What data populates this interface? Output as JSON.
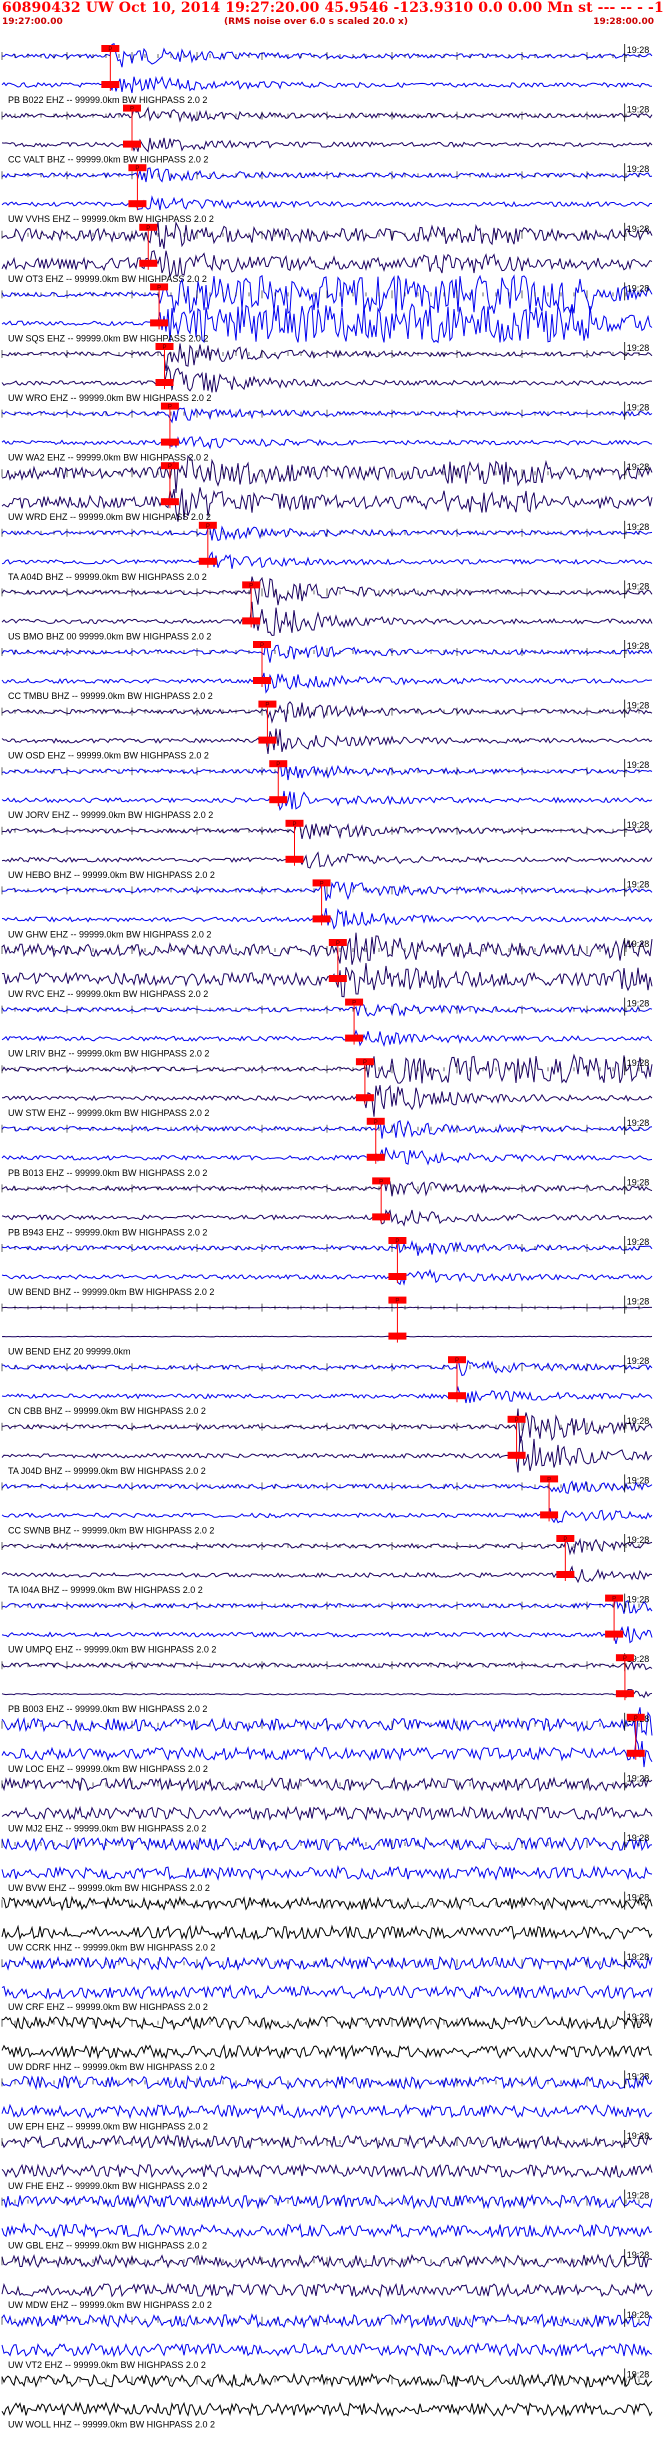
{
  "header": {
    "title": "60890432 UW Oct 10, 2014 19:27:20.00   45.9546 -123.9310  0.0 0.00 Mn st --- -- -   -1",
    "start_time": "19:27:00.00",
    "note": "(RMS noise over 6.0 s scaled 20.0 x)",
    "end_time": "19:28:00.00"
  },
  "colors": {
    "header_text": "#ff0000",
    "trace_blue": "#0000ee",
    "trace_navy": "#1a0060",
    "trace_black": "#000000",
    "pick_box": "#ff0000",
    "pick_line": "#ff0000"
  },
  "chart_data": {
    "type": "seismogram",
    "title": "60890432 UW Oct 10, 2014 19:27:20.00   45.9546 -123.9310  0.0 0.00 Mn st --- -- -   -1",
    "x_axis": {
      "start": "19:27:00.00",
      "end": "19:28:00.00",
      "tick_label": "19:28",
      "unit": "s"
    },
    "pick_box_label": "P",
    "traces": [
      {
        "label": "PB B022 EHZ -- 99999.0km BW  HIGHPASS  2.0  2",
        "pick_s": 10.0,
        "amp": 0.55,
        "style": "burst"
      },
      {
        "label": "CC VALT BHZ -- 99999.0km BW  HIGHPASS  2.0  2",
        "pick_s": 12.0,
        "amp": 0.35,
        "style": "quiet"
      },
      {
        "label": "UW VVHS EHZ -- 99999.0km BW  HIGHPASS  2.0  2",
        "pick_s": 12.5,
        "amp": 0.3,
        "style": "quiet"
      },
      {
        "label": "UW OT3 EHZ -- 99999.0km BW  HIGHPASS  2.0  2",
        "pick_s": 13.5,
        "amp": 0.45,
        "style": "noisy"
      },
      {
        "label": "UW SQS EHZ -- 99999.0km BW  HIGHPASS  2.0  2",
        "pick_s": 14.5,
        "amp": 1.0,
        "style": "saturated"
      },
      {
        "label": "UW WRO EHZ -- 99999.0km BW  HIGHPASS  2.0  2",
        "pick_s": 15.0,
        "amp": 0.7,
        "style": "burst"
      },
      {
        "label": "UW WA2 EHZ -- 99999.0km BW  HIGHPASS  2.0  2",
        "pick_s": 15.5,
        "amp": 0.3,
        "style": "quiet"
      },
      {
        "label": "UW WRD EHZ -- 99999.0km BW  HIGHPASS  2.0  2",
        "pick_s": 15.5,
        "amp": 0.7,
        "style": "noisy"
      },
      {
        "label": "TA A04D BHZ -- 99999.0km BW  HIGHPASS  2.0  2",
        "pick_s": 19.0,
        "amp": 0.35,
        "style": "quiet"
      },
      {
        "label": "US BMO BHZ 00 99999.0km BW  HIGHPASS  2.0  2",
        "pick_s": 23.0,
        "amp": 0.8,
        "style": "burst"
      },
      {
        "label": "CC TMBU BHZ -- 99999.0km BW  HIGHPASS  2.0  2",
        "pick_s": 24.0,
        "amp": 0.45,
        "style": "quiet"
      },
      {
        "label": "UW OSD EHZ -- 99999.0km BW  HIGHPASS  2.0  2",
        "pick_s": 24.5,
        "amp": 0.55,
        "style": "burst"
      },
      {
        "label": "UW JORV EHZ -- 99999.0km BW  HIGHPASS  2.0  2",
        "pick_s": 25.5,
        "amp": 0.4,
        "style": "quiet"
      },
      {
        "label": "UW HEBO BHZ -- 99999.0km BW  HIGHPASS  2.0  2",
        "pick_s": 27.0,
        "amp": 0.4,
        "style": "quiet"
      },
      {
        "label": "UW GHW EHZ -- 99999.0km BW  HIGHPASS  2.0  2",
        "pick_s": 29.5,
        "amp": 0.45,
        "style": "quiet"
      },
      {
        "label": "UW RVC EHZ -- 99999.0km BW  HIGHPASS  2.0  2",
        "pick_s": 31.0,
        "amp": 0.7,
        "style": "noisy"
      },
      {
        "label": "UW LRIV BHZ -- 99999.0km BW  HIGHPASS  2.0  2",
        "pick_s": 32.5,
        "amp": 0.35,
        "style": "quiet"
      },
      {
        "label": "UW STW EHZ -- 99999.0km BW  HIGHPASS  2.0  2",
        "pick_s": 33.5,
        "amp": 0.9,
        "style": "saturated_late"
      },
      {
        "label": "PB B013 EHZ -- 99999.0km BW  HIGHPASS  2.0  2",
        "pick_s": 34.5,
        "amp": 0.45,
        "style": "burst"
      },
      {
        "label": "PB B943 EHZ -- 99999.0km BW  HIGHPASS  2.0  2",
        "pick_s": 35.0,
        "amp": 0.4,
        "style": "burst"
      },
      {
        "label": "UW BEND BHZ -- 99999.0km BW  HIGHPASS  2.0  2",
        "pick_s": 36.5,
        "amp": 0.35,
        "style": "quiet"
      },
      {
        "label": "UW BEND EHZ 20 99999.0km",
        "pick_s": 36.5,
        "amp": 0.0,
        "style": "flat"
      },
      {
        "label": "CN CBB BHZ -- 99999.0km BW  HIGHPASS  2.0  2",
        "pick_s": 42.0,
        "amp": 0.3,
        "style": "quiet"
      },
      {
        "label": "TA J04D BHZ -- 99999.0km BW  HIGHPASS  2.0  2",
        "pick_s": 47.5,
        "amp": 0.9,
        "style": "burst_late"
      },
      {
        "label": "CC SWNB BHZ -- 99999.0km BW  HIGHPASS  2.0  2",
        "pick_s": 50.5,
        "amp": 0.3,
        "style": "quiet"
      },
      {
        "label": "TA I04A BHZ -- 99999.0km BW  HIGHPASS  2.0  2",
        "pick_s": 52.0,
        "amp": 0.3,
        "style": "quiet"
      },
      {
        "label": "UW UMPQ EHZ -- 99999.0km BW  HIGHPASS  2.0  2",
        "pick_s": 56.5,
        "amp": 0.35,
        "style": "quiet"
      },
      {
        "label": "PB B003 EHZ -- 99999.0km BW  HIGHPASS  2.0  2",
        "pick_s": 57.5,
        "amp": 0.2,
        "style": "flatline"
      },
      {
        "label": "UW LOC EHZ -- 99999.0km BW  HIGHPASS  2.0  2",
        "pick_s": 58.5,
        "amp": 0.55,
        "style": "noisy"
      },
      {
        "label": "UW MJ2 EHZ -- 99999.0km BW  HIGHPASS  2.0  2",
        "pick_s": null,
        "amp": 0.35,
        "style": "noisy"
      },
      {
        "label": "UW BVW EHZ -- 99999.0km BW  HIGHPASS  2.0  2",
        "pick_s": null,
        "amp": 0.35,
        "style": "noisy"
      },
      {
        "label": "UW CCRK HHZ -- 99999.0km BW  HIGHPASS  2.0  2",
        "pick_s": null,
        "amp": 0.35,
        "style": "noisy_black"
      },
      {
        "label": "UW CRF EHZ -- 99999.0km BW  HIGHPASS  2.0  2",
        "pick_s": null,
        "amp": 0.4,
        "style": "noisy"
      },
      {
        "label": "UW DDRF HHZ -- 99999.0km BW  HIGHPASS  2.0  2",
        "pick_s": null,
        "amp": 0.35,
        "style": "noisy_black"
      },
      {
        "label": "UW EPH EHZ -- 99999.0km BW  HIGHPASS  2.0  2",
        "pick_s": null,
        "amp": 0.35,
        "style": "noisy"
      },
      {
        "label": "UW FHE EHZ -- 99999.0km BW  HIGHPASS  2.0  2",
        "pick_s": null,
        "amp": 0.35,
        "style": "noisy"
      },
      {
        "label": "UW GBL EHZ -- 99999.0km BW  HIGHPASS  2.0  2",
        "pick_s": null,
        "amp": 0.35,
        "style": "noisy"
      },
      {
        "label": "UW MDW EHZ -- 99999.0km BW  HIGHPASS  2.0  2",
        "pick_s": null,
        "amp": 0.35,
        "style": "noisy"
      },
      {
        "label": "UW VT2 EHZ -- 99999.0km BW  HIGHPASS  2.0  2",
        "pick_s": null,
        "amp": 0.35,
        "style": "noisy"
      },
      {
        "label": "UW WOLL HHZ -- 99999.0km BW  HIGHPASS  2.0  2",
        "pick_s": null,
        "amp": 0.35,
        "style": "noisy_black"
      }
    ]
  }
}
